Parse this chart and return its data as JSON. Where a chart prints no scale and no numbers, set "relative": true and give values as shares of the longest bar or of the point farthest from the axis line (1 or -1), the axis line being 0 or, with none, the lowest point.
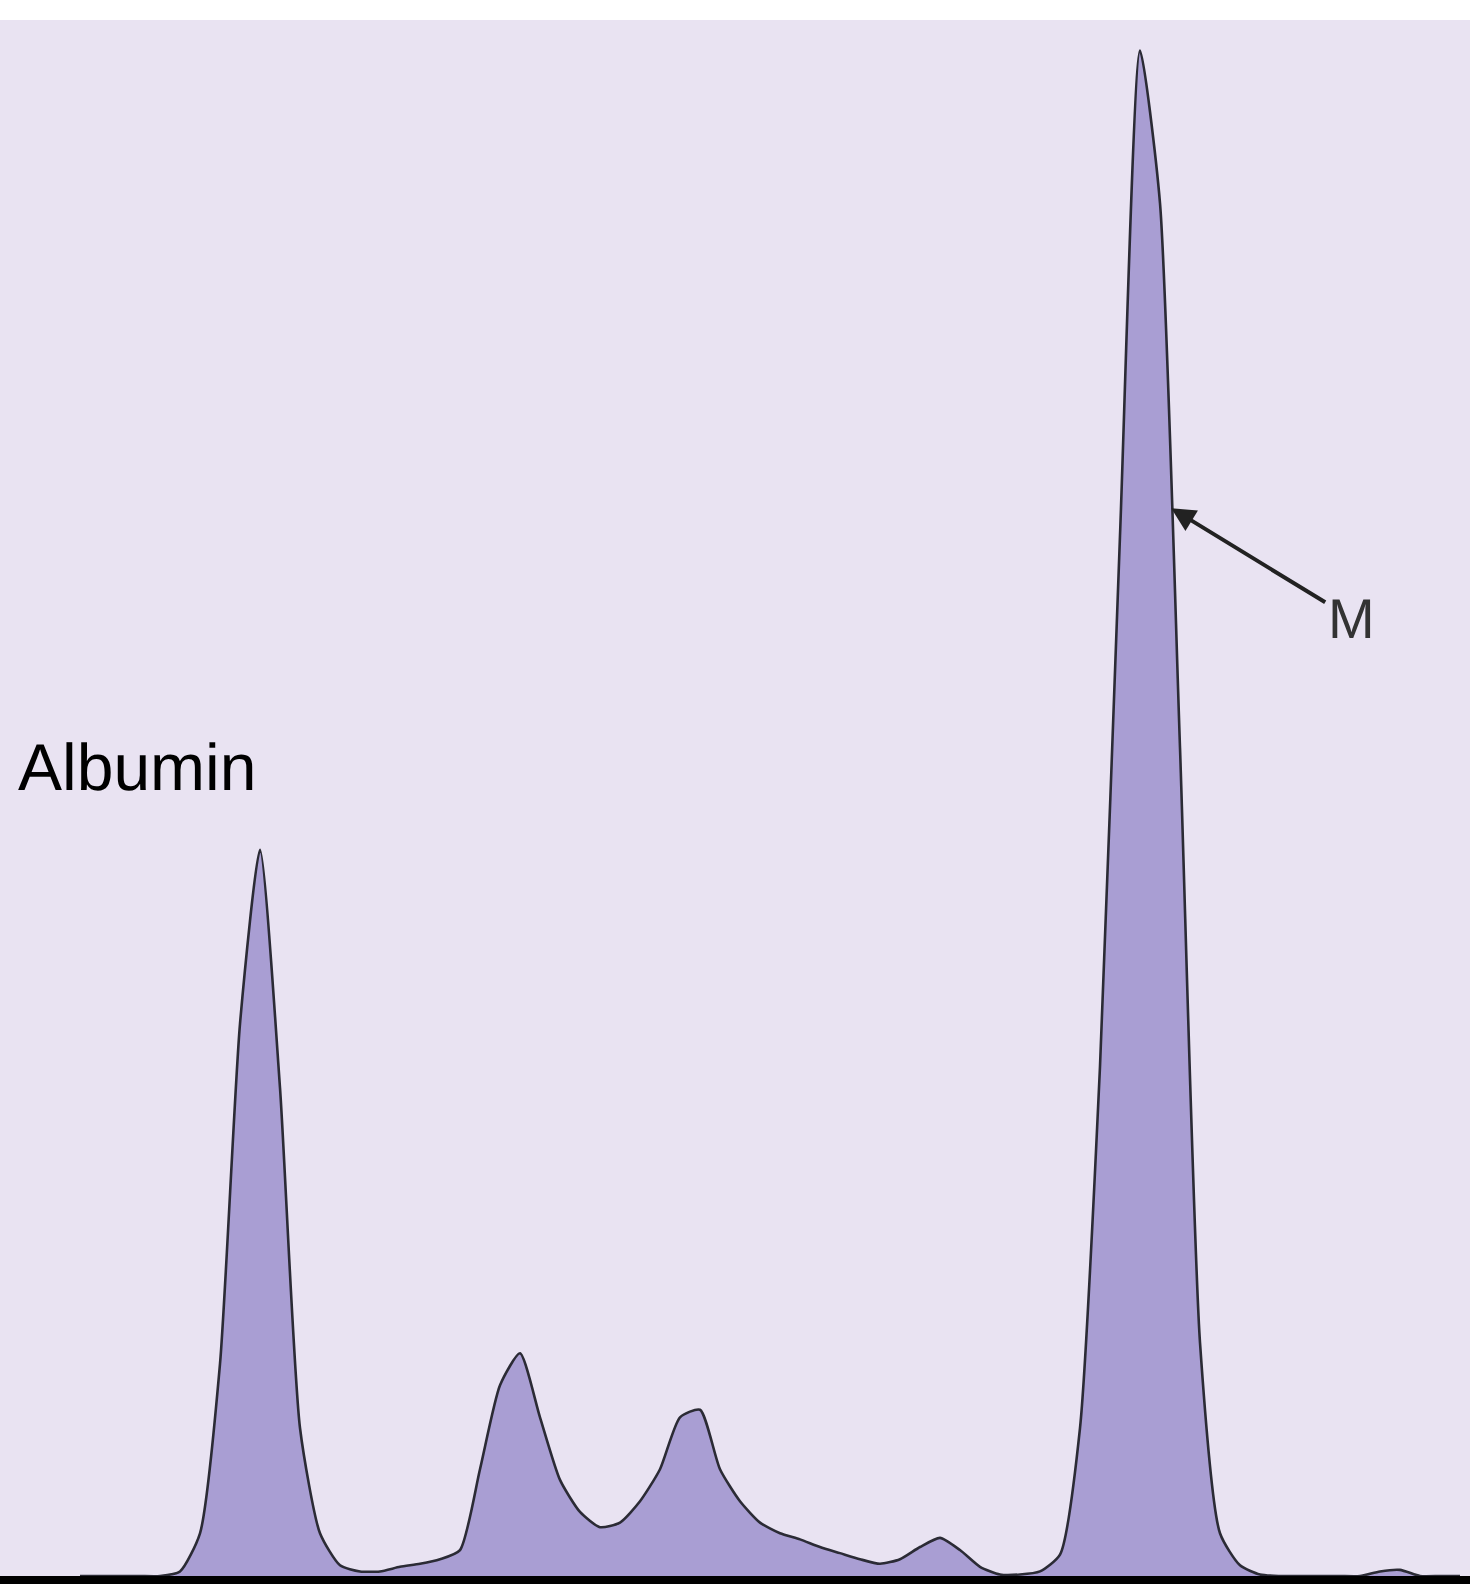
{
  "chart_data": {
    "type": "area",
    "relative": true,
    "color": "#a99ed3",
    "grid": false,
    "legend": false,
    "categories": [
      null,
      null,
      null,
      null,
      null,
      null,
      null,
      null,
      null,
      null,
      null,
      null,
      null,
      null,
      null,
      null,
      null,
      null,
      null,
      null,
      null,
      null,
      null,
      null,
      null,
      null,
      null,
      null,
      null,
      null,
      null,
      null,
      null,
      null,
      null,
      null,
      null,
      null,
      null,
      null,
      null,
      null,
      null,
      null,
      null,
      null,
      null,
      null,
      null,
      null,
      null,
      null,
      null,
      null,
      null,
      null,
      null,
      null,
      null,
      null,
      null,
      null,
      null,
      null,
      null,
      null,
      null,
      null,
      null,
      null
    ],
    "values": [
      0,
      0,
      0,
      0,
      0,
      0.003,
      0.028,
      0.139,
      0.362,
      0.476,
      0.32,
      0.097,
      0.028,
      0.007,
      0.003,
      0.003,
      0.006,
      0.008,
      0.011,
      0.017,
      0.07,
      0.125,
      0.146,
      0.104,
      0.063,
      0.042,
      0.032,
      0.035,
      0.049,
      0.07,
      0.104,
      0.109,
      0.07,
      0.049,
      0.035,
      0.028,
      0.024,
      0.019,
      0.015,
      0.011,
      0.008,
      0.011,
      0.019,
      0.025,
      0.017,
      0.006,
      0.001,
      0.001,
      0.003,
      0.014,
      0.097,
      0.334,
      0.682,
      1,
      0.9,
      0.543,
      0.153,
      0.028,
      0.007,
      0.001,
      0,
      0,
      0,
      0,
      0,
      0.003,
      0.004,
      0,
      0,
      0
    ],
    "annotations": [
      "Albumin",
      "M"
    ]
  }
}
